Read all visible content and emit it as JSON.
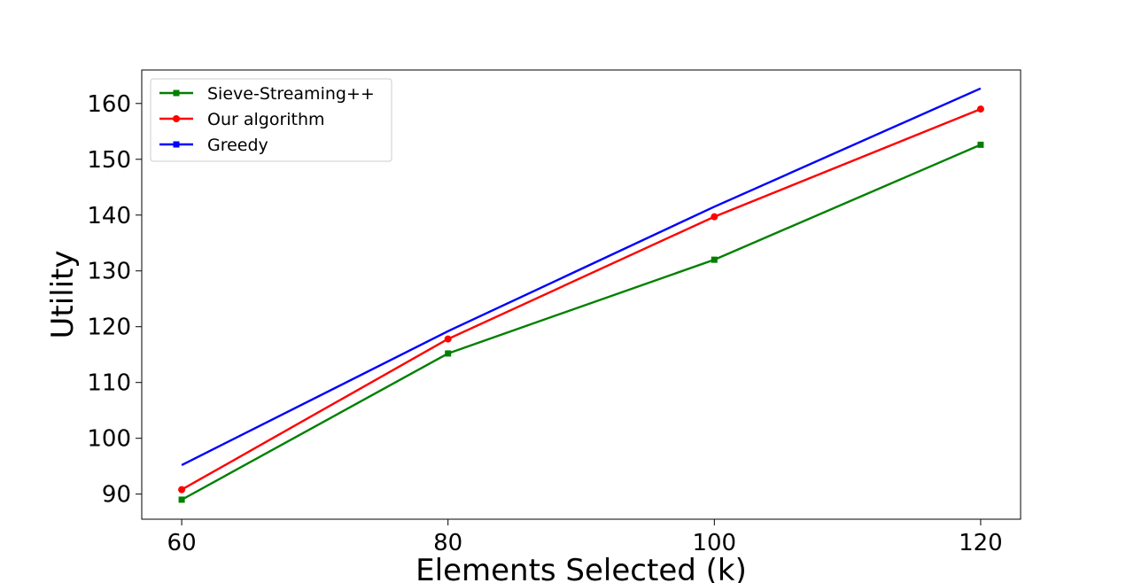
{
  "chart_data": {
    "type": "line",
    "title": "",
    "xlabel": "Elements Selected (k)",
    "ylabel": "Utility",
    "x": [
      60,
      80,
      100,
      120
    ],
    "xlim": [
      57,
      123
    ],
    "ylim": [
      85.5,
      166
    ],
    "xticks": [
      60,
      80,
      100,
      120
    ],
    "yticks": [
      90,
      100,
      110,
      120,
      130,
      140,
      150,
      160
    ],
    "grid": false,
    "legend_position": "top-left",
    "series": [
      {
        "name": "Sieve-Streaming++",
        "color": "#008000",
        "marker": "square",
        "values": [
          89,
          115.2,
          132,
          152.6
        ]
      },
      {
        "name": "Our algorithm",
        "color": "#ff0000",
        "marker": "circle",
        "values": [
          90.8,
          117.8,
          139.7,
          159
        ]
      },
      {
        "name": "Greedy",
        "color": "#0000ff",
        "marker": "square",
        "values": [
          95.2,
          119.2,
          141.5,
          162.7
        ]
      }
    ]
  }
}
